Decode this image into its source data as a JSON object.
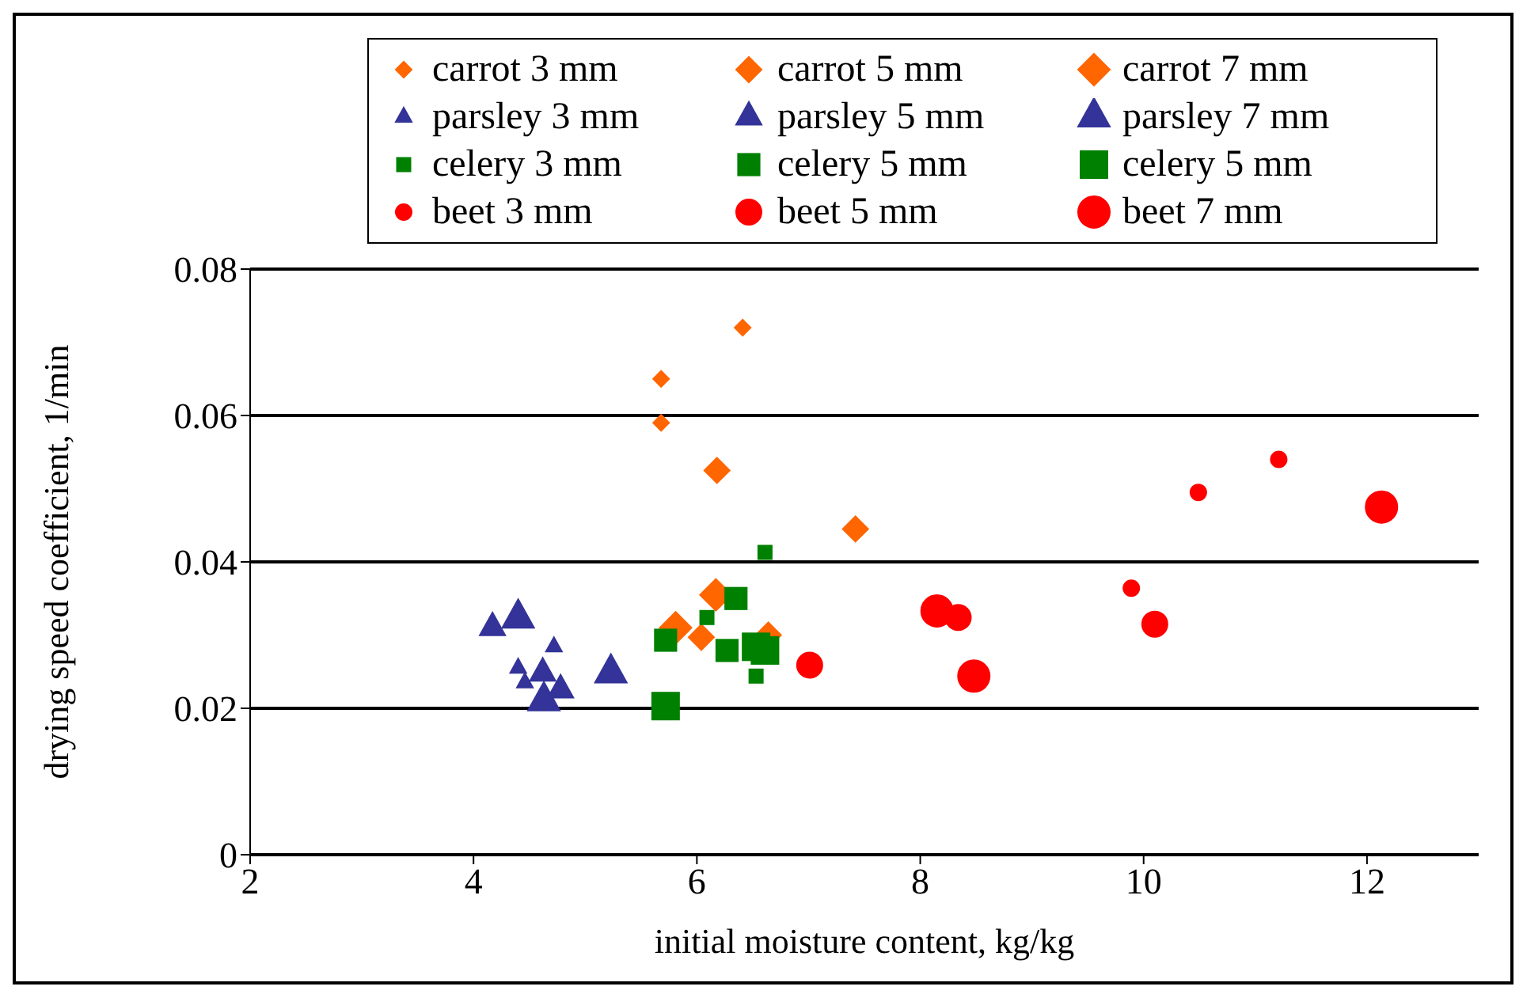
{
  "chart_data": {
    "type": "scatter",
    "xlabel": "initial moisture content, kg/kg",
    "ylabel": "drying speed coefficient, 1/min",
    "xlim": [
      2,
      13
    ],
    "xticks": [
      2,
      4,
      6,
      8,
      10,
      12
    ],
    "ylim": [
      0,
      0.08
    ],
    "yticks": [
      0,
      0.02,
      0.04,
      0.06,
      0.08
    ],
    "grid": "y",
    "legend": "top",
    "series": [
      {
        "name": "carrot 3 mm",
        "color": "#ff6600",
        "marker": "diamond",
        "x": [
          5.68,
          5.68,
          6.41
        ],
        "values": [
          0.065,
          0.059,
          0.072
        ]
      },
      {
        "name": "carrot 5 mm",
        "color": "#ff6600",
        "marker": "diamond",
        "x": [
          6.18,
          7.42,
          6.04,
          6.64
        ],
        "values": [
          0.0525,
          0.0445,
          0.0297,
          0.03
        ]
      },
      {
        "name": "carrot 7 mm",
        "color": "#ff6600",
        "marker": "diamond",
        "x": [
          5.81,
          6.17
        ],
        "values": [
          0.031,
          0.0355
        ]
      },
      {
        "name": "parsley 3 mm",
        "color": "#333399",
        "marker": "triangle",
        "x": [
          4.72,
          4.4,
          4.46
        ],
        "values": [
          0.0284,
          0.0255,
          0.0235
        ]
      },
      {
        "name": "parsley 5 mm",
        "color": "#333399",
        "marker": "triangle",
        "x": [
          4.17,
          4.62,
          4.78
        ],
        "values": [
          0.031,
          0.0248,
          0.0225
        ]
      },
      {
        "name": "parsley 7 mm",
        "color": "#333399",
        "marker": "triangle",
        "x": [
          4.4,
          4.63,
          5.23
        ],
        "values": [
          0.0323,
          0.021,
          0.0248
        ]
      },
      {
        "name": "celery 3 mm",
        "color": "#008000",
        "marker": "square",
        "x": [
          6.61,
          6.09,
          6.53
        ],
        "values": [
          0.0413,
          0.0324,
          0.0244
        ]
      },
      {
        "name": "celery 5 mm",
        "color": "#008000",
        "marker": "square",
        "x": [
          5.72,
          6.35,
          6.27
        ],
        "values": [
          0.0293,
          0.035,
          0.0279
        ]
      },
      {
        "name": "celery 5 mm",
        "color": "#008000",
        "marker": "square",
        "x": [
          5.72,
          6.53,
          6.61
        ],
        "values": [
          0.0203,
          0.0284,
          0.0279
        ]
      },
      {
        "name": "beet 3 mm",
        "color": "#ff0000",
        "marker": "circle",
        "x": [
          10.49,
          11.21,
          9.89
        ],
        "values": [
          0.0495,
          0.054,
          0.0364
        ]
      },
      {
        "name": "beet 5 mm",
        "color": "#ff0000",
        "marker": "circle",
        "x": [
          7.01,
          8.34,
          10.1
        ],
        "values": [
          0.0259,
          0.0324,
          0.0315
        ]
      },
      {
        "name": "beet 7 mm",
        "color": "#ff0000",
        "marker": "circle",
        "x": [
          8.15,
          8.48,
          12.13
        ],
        "values": [
          0.0333,
          0.0244,
          0.0475
        ]
      }
    ]
  }
}
